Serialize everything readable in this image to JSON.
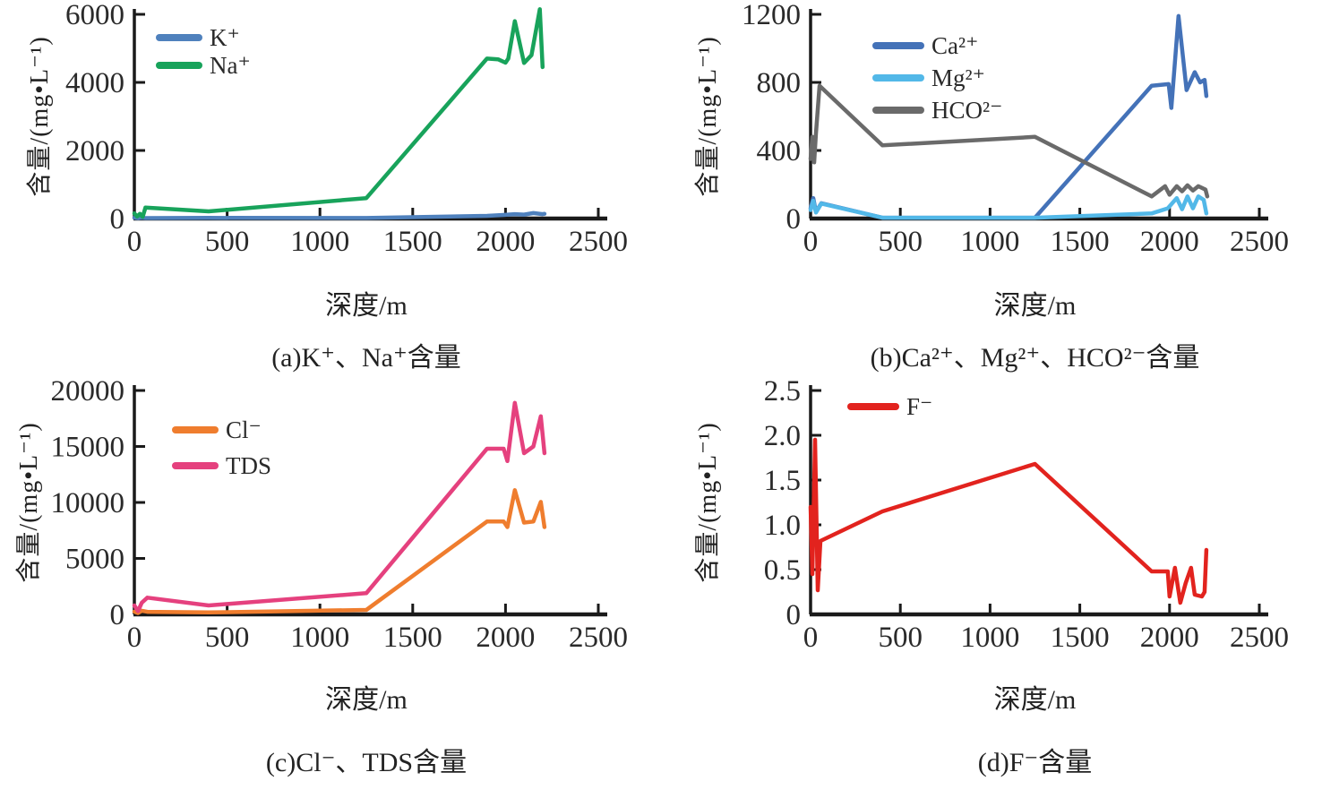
{
  "figure": {
    "background": "#ffffff",
    "axis_color": "#1a1a1a",
    "text_color": "#2a2a2a"
  },
  "chart_data": [
    {
      "id": "a",
      "type": "line",
      "caption": "(a)K⁺、Na⁺含量",
      "xlabel": "深度/m",
      "ylabel": "含量/(mg•L⁻¹)",
      "xlim": [
        0,
        2500
      ],
      "xticks": [
        0,
        500,
        1000,
        1500,
        2000,
        2500
      ],
      "ylim": [
        0,
        6000
      ],
      "yticks": [
        0,
        2000,
        4000,
        6000
      ],
      "ytick_labels": [
        "0",
        "2000",
        "4000",
        "6000"
      ],
      "grid": false,
      "legend_position": "top-left-inside",
      "series": [
        {
          "name": "K⁺",
          "color": "#4F81BD",
          "x": [
            0,
            20,
            40,
            60,
            400,
            1250,
            1900,
            1990,
            2050,
            2100,
            2150,
            2200,
            2210
          ],
          "y": [
            20,
            8,
            25,
            12,
            18,
            15,
            80,
            105,
            130,
            115,
            160,
            130,
            140
          ]
        },
        {
          "name": "Na⁺",
          "color": "#18A35B",
          "x": [
            0,
            15,
            30,
            45,
            60,
            400,
            1250,
            1900,
            1960,
            2000,
            2015,
            2050,
            2100,
            2140,
            2185,
            2200
          ],
          "y": [
            150,
            60,
            140,
            50,
            320,
            210,
            600,
            4700,
            4680,
            4580,
            4700,
            5800,
            4570,
            4800,
            6150,
            4450
          ]
        }
      ]
    },
    {
      "id": "b",
      "type": "line",
      "caption": "(b)Ca²⁺、Mg²⁺、HCO²⁻含量",
      "xlabel": "深度/m",
      "ylabel": "含量/(mg•L⁻¹)",
      "xlim": [
        0,
        2500
      ],
      "xticks": [
        0,
        500,
        1000,
        1500,
        2000,
        2500
      ],
      "ylim": [
        0,
        1200
      ],
      "yticks": [
        0,
        400,
        800,
        1200
      ],
      "ytick_labels": [
        "0",
        "400",
        "800",
        "1200"
      ],
      "grid": false,
      "legend_position": "top-left-inside",
      "series": [
        {
          "name": "Ca²⁺",
          "color": "#4472B8",
          "x": [
            0,
            15,
            30,
            60,
            400,
            1250,
            1900,
            1995,
            2010,
            2050,
            2095,
            2140,
            2170,
            2195,
            2205
          ],
          "y": [
            60,
            120,
            40,
            90,
            5,
            5,
            780,
            790,
            650,
            1190,
            755,
            860,
            800,
            815,
            720
          ]
        },
        {
          "name": "Mg²⁺",
          "color": "#52B8E8",
          "x": [
            0,
            15,
            30,
            60,
            400,
            1250,
            1900,
            1990,
            2040,
            2070,
            2100,
            2130,
            2160,
            2190,
            2205
          ],
          "y": [
            50,
            105,
            35,
            88,
            5,
            5,
            30,
            60,
            120,
            55,
            130,
            60,
            130,
            110,
            30
          ]
        },
        {
          "name": "HCO²⁻",
          "color": "#6A6A6A",
          "x": [
            0,
            10,
            20,
            30,
            50,
            400,
            1250,
            1900,
            1975,
            2000,
            2040,
            2070,
            2100,
            2130,
            2160,
            2200,
            2210
          ],
          "y": [
            350,
            480,
            330,
            500,
            780,
            430,
            480,
            130,
            190,
            140,
            190,
            160,
            195,
            165,
            190,
            170,
            130
          ]
        }
      ]
    },
    {
      "id": "c",
      "type": "line",
      "caption": "(c)Cl⁻、TDS含量",
      "xlabel": "深度/m",
      "ylabel": "含量/(mg•L⁻¹)",
      "xlim": [
        0,
        2500
      ],
      "xticks": [
        0,
        500,
        1000,
        1500,
        2000,
        2500
      ],
      "ylim": [
        0,
        20000
      ],
      "yticks": [
        0,
        5000,
        10000,
        15000,
        20000
      ],
      "ytick_labels": [
        "0",
        "5000",
        "10000",
        "15000",
        "20000"
      ],
      "grid": false,
      "legend_position": "top-left-inside",
      "series": [
        {
          "name": "Cl⁻",
          "color": "#EF7D2E",
          "x": [
            0,
            20,
            40,
            70,
            400,
            1250,
            1900,
            1990,
            2010,
            2050,
            2100,
            2150,
            2190,
            2210
          ],
          "y": [
            250,
            120,
            330,
            230,
            180,
            400,
            8300,
            8300,
            7800,
            11100,
            8200,
            8300,
            10050,
            7800
          ]
        },
        {
          "name": "TDS",
          "color": "#E5417E",
          "x": [
            0,
            20,
            40,
            70,
            400,
            1250,
            1900,
            1990,
            2010,
            2050,
            2100,
            2150,
            2190,
            2210
          ],
          "y": [
            800,
            300,
            1050,
            1500,
            800,
            1900,
            14800,
            14800,
            13700,
            18900,
            14400,
            15000,
            17700,
            14400
          ]
        }
      ]
    },
    {
      "id": "d",
      "type": "line",
      "caption": "(d)F⁻含量",
      "xlabel": "深度/m",
      "ylabel": "含量/(mg•L⁻¹)",
      "xlim": [
        0,
        2500
      ],
      "xticks": [
        0,
        500,
        1000,
        1500,
        2000,
        2500
      ],
      "ylim": [
        0,
        2.5
      ],
      "yticks": [
        0,
        0.5,
        1.0,
        1.5,
        2.0,
        2.5
      ],
      "ytick_labels": [
        "0",
        "0.5",
        "1.0",
        "1.5",
        "2.0",
        "2.5"
      ],
      "grid": false,
      "legend_position": "top-left-inside",
      "series": [
        {
          "name": "F⁻",
          "color": "#E2231E",
          "x": [
            0,
            10,
            25,
            40,
            55,
            400,
            1250,
            1900,
            1990,
            2000,
            2030,
            2060,
            2090,
            2120,
            2140,
            2180,
            2195,
            2205
          ],
          "y": [
            1.2,
            0.45,
            1.95,
            0.27,
            0.82,
            1.15,
            1.68,
            0.48,
            0.48,
            0.2,
            0.52,
            0.13,
            0.35,
            0.52,
            0.22,
            0.2,
            0.25,
            0.72
          ]
        }
      ]
    }
  ]
}
